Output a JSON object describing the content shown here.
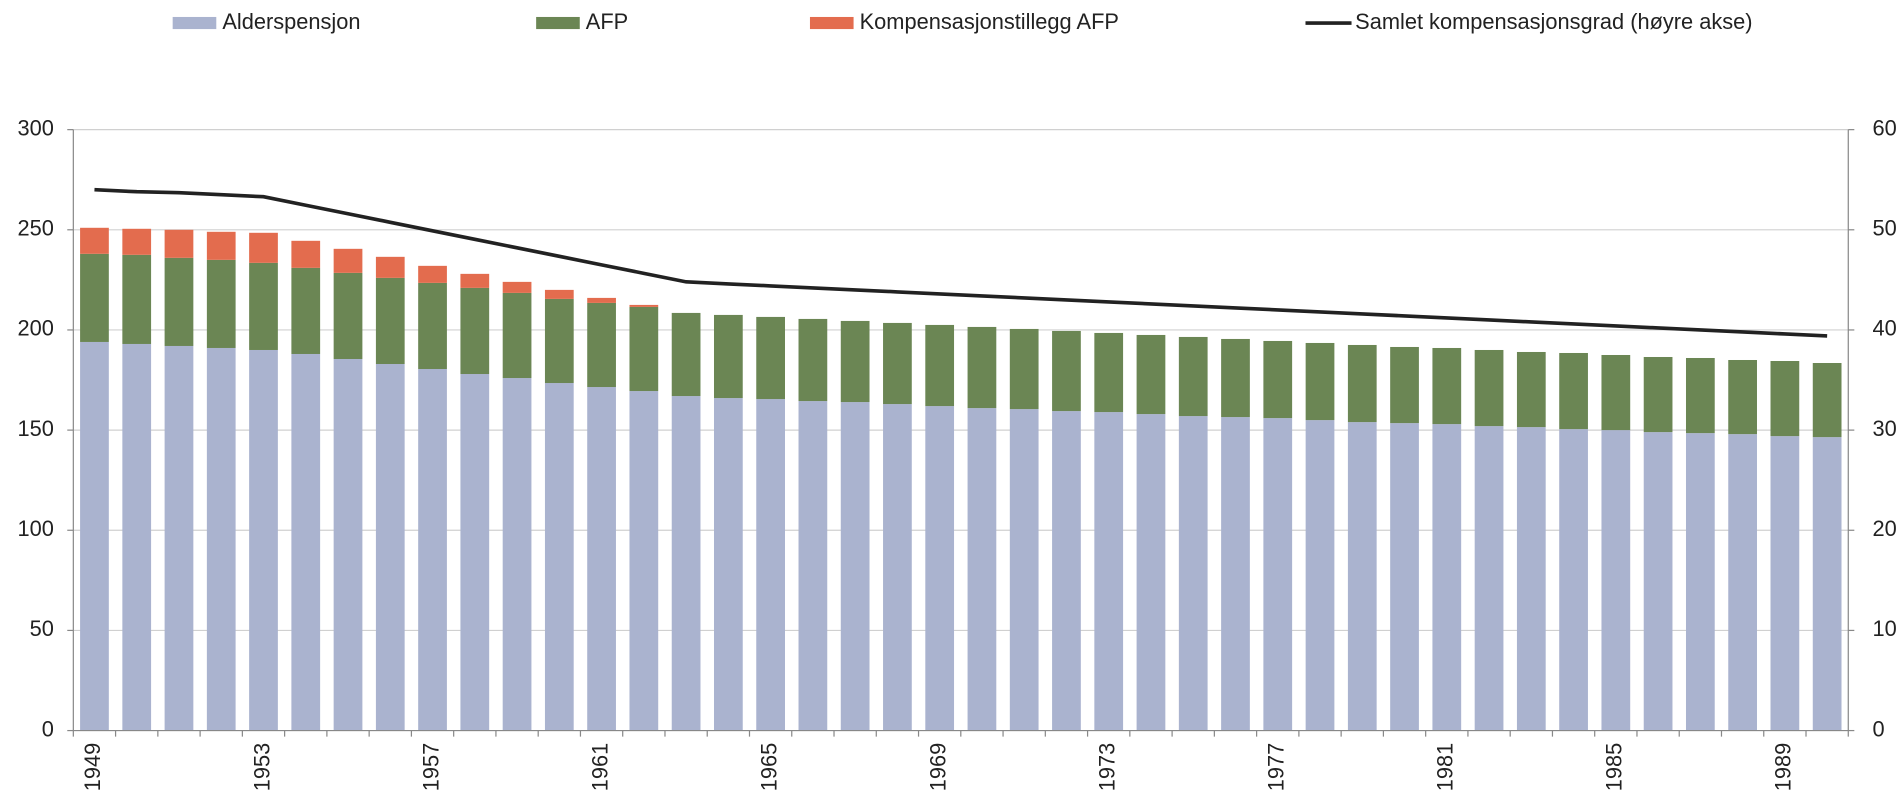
{
  "chart_data": {
    "type": "bar",
    "stacked": true,
    "categories": [
      "1949",
      null,
      null,
      null,
      "1953",
      null,
      null,
      null,
      "1957",
      null,
      null,
      null,
      "1961",
      null,
      null,
      null,
      "1965",
      null,
      null,
      null,
      "1969",
      null,
      null,
      null,
      "1973",
      null,
      null,
      null,
      "1977",
      null,
      null,
      null,
      "1981",
      null,
      null,
      null,
      "1985",
      null,
      null,
      null,
      "1989",
      null
    ],
    "series": [
      {
        "name": "Alderspensjon",
        "color": "#aab3cf",
        "values": [
          194,
          193,
          192,
          191,
          190,
          188,
          185.5,
          183,
          180.5,
          178,
          176,
          173.5,
          171.5,
          169.5,
          167,
          166,
          165.5,
          164.5,
          164,
          163,
          162,
          161,
          160.5,
          159.5,
          159,
          158,
          157,
          156.5,
          156,
          155,
          154,
          153.5,
          153,
          152,
          151.5,
          150.5,
          150,
          149,
          148.5,
          148,
          147,
          146.5
        ]
      },
      {
        "name": "AFP",
        "color": "#6b8654",
        "values": [
          44,
          44.5,
          44,
          44,
          43.5,
          43,
          43,
          43,
          43,
          43,
          42.5,
          42,
          42,
          42,
          41.5,
          41.5,
          41,
          41,
          40.5,
          40.5,
          40.5,
          40.5,
          40,
          40,
          39.5,
          39.5,
          39.5,
          39,
          38.5,
          38.5,
          38.5,
          38,
          38,
          38,
          37.5,
          38,
          37.5,
          37.5,
          37.5,
          37,
          37.5,
          37
        ]
      },
      {
        "name": "Kompensasjonstillegg AFP",
        "color": "#e36c4e",
        "values": [
          13,
          13,
          14,
          14,
          15,
          13.5,
          12,
          10.5,
          8.5,
          7,
          5.5,
          4.5,
          2.5,
          1,
          0,
          0,
          0,
          0,
          0,
          0,
          0,
          0,
          0,
          0,
          0,
          0,
          0,
          0,
          0,
          0,
          0,
          0,
          0,
          0,
          0,
          0,
          0,
          0,
          0,
          0,
          0,
          0
        ]
      },
      {
        "name": "Samlet kompensasjonsgrad (høyre akse)",
        "type": "line",
        "axis": "y2",
        "color": "#222222",
        "values": [
          54,
          53.8,
          53.7,
          53.5,
          53.3,
          52.45,
          51.6,
          50.75,
          49.9,
          49.05,
          48.2,
          47.35,
          46.5,
          45.65,
          44.8,
          44.6,
          44.4,
          44.2,
          44,
          43.8,
          43.6,
          43.4,
          43.2,
          43,
          42.8,
          42.6,
          42.4,
          42.2,
          42,
          41.8,
          41.6,
          41.4,
          41.2,
          41,
          40.8,
          40.6,
          40.4,
          40.2,
          40,
          39.8,
          39.6,
          39.4
        ]
      }
    ],
    "ylim": [
      0,
      300
    ],
    "yticks": [
      0,
      50,
      100,
      150,
      200,
      250,
      300
    ],
    "y2lim": [
      0,
      60
    ],
    "y2ticks": [
      0,
      10,
      20,
      30,
      40,
      50,
      60
    ],
    "grid": true,
    "legend": "top"
  }
}
